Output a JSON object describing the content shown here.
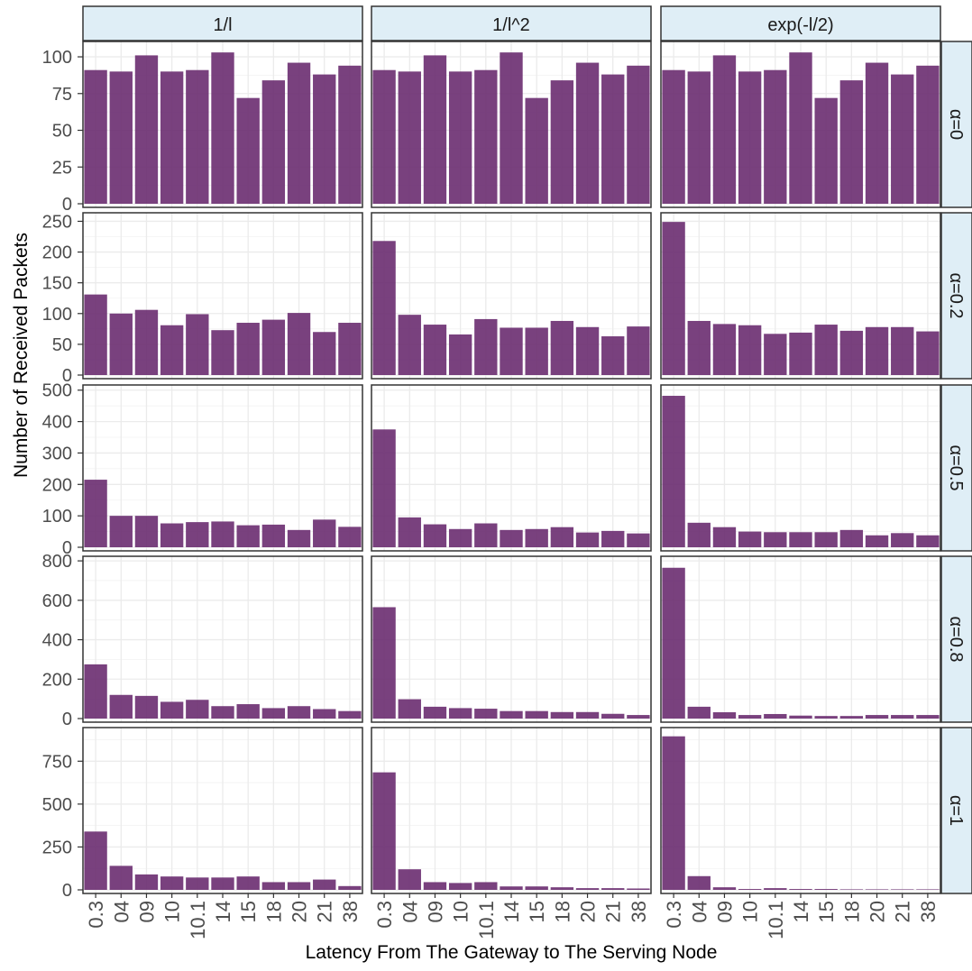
{
  "chart_data": {
    "type": "bar",
    "xlabel": "Latency From The Gateway to The Serving Node",
    "ylabel": "Number of Received Packets",
    "categories": [
      "0.3",
      "04",
      "09",
      "10",
      "10.1",
      "14",
      "15",
      "18",
      "20",
      "21",
      "38"
    ],
    "columns": [
      "1/l",
      "1/l^2",
      "exp(-l/2)"
    ],
    "rows": [
      {
        "label": "α=0",
        "ylim": [
          0,
          108
        ],
        "yticks": [
          0,
          25,
          50,
          75,
          100
        ],
        "panels": [
          {
            "facet": "1/l",
            "values": [
              91,
              90,
              101,
              90,
              91,
              103,
              72,
              84,
              96,
              88,
              94
            ]
          },
          {
            "facet": "1/l^2",
            "values": [
              91,
              90,
              101,
              90,
              91,
              103,
              72,
              84,
              96,
              88,
              94
            ]
          },
          {
            "facet": "exp(-l/2)",
            "values": [
              91,
              90,
              101,
              90,
              91,
              103,
              72,
              84,
              96,
              88,
              94
            ]
          }
        ]
      },
      {
        "label": "α=0.2",
        "ylim": [
          0,
          258
        ],
        "yticks": [
          0,
          50,
          100,
          150,
          200,
          250
        ],
        "panels": [
          {
            "facet": "1/l",
            "values": [
              131,
              100,
              106,
              81,
              99,
              73,
              85,
              90,
              101,
              70,
              85
            ]
          },
          {
            "facet": "1/l^2",
            "values": [
              218,
              98,
              82,
              66,
              91,
              77,
              77,
              88,
              78,
              63,
              79
            ]
          },
          {
            "facet": "exp(-l/2)",
            "values": [
              249,
              88,
              83,
              81,
              67,
              69,
              82,
              72,
              78,
              78,
              71
            ]
          }
        ]
      },
      {
        "label": "α=0.5",
        "ylim": [
          0,
          505
        ],
        "yticks": [
          0,
          100,
          200,
          300,
          400,
          500
        ],
        "panels": [
          {
            "facet": "1/l",
            "values": [
              215,
              100,
              100,
              76,
              80,
              82,
              70,
              72,
              55,
              88,
              65
            ]
          },
          {
            "facet": "1/l^2",
            "values": [
              375,
              95,
              73,
              58,
              76,
              55,
              58,
              64,
              47,
              52,
              44
            ]
          },
          {
            "facet": "exp(-l/2)",
            "values": [
              482,
              78,
              64,
              50,
              48,
              48,
              48,
              55,
              38,
              45,
              38
            ]
          }
        ]
      },
      {
        "label": "α=0.8",
        "ylim": [
          0,
          805
        ],
        "yticks": [
          0,
          200,
          400,
          600,
          800
        ],
        "panels": [
          {
            "facet": "1/l",
            "values": [
              275,
              120,
              115,
              85,
              95,
              63,
              73,
              53,
              63,
              48,
              38
            ]
          },
          {
            "facet": "1/l^2",
            "values": [
              565,
              98,
              60,
              53,
              50,
              38,
              38,
              33,
              33,
              24,
              18
            ]
          },
          {
            "facet": "exp(-l/2)",
            "values": [
              765,
              60,
              32,
              18,
              23,
              15,
              13,
              13,
              18,
              18,
              18
            ]
          }
        ]
      },
      {
        "label": "α=1",
        "ylim": [
          0,
          925
        ],
        "yticks": [
          0,
          250,
          500,
          750
        ],
        "panels": [
          {
            "facet": "1/l",
            "values": [
              340,
              140,
              90,
              78,
              72,
              72,
              78,
              45,
              45,
              60,
              22
            ]
          },
          {
            "facet": "1/l^2",
            "values": [
              685,
              120,
              45,
              40,
              45,
              20,
              20,
              15,
              10,
              10,
              8
            ]
          },
          {
            "facet": "exp(-l/2)",
            "values": [
              895,
              80,
              15,
              5,
              10,
              5,
              5,
              3,
              3,
              3,
              3
            ]
          }
        ]
      }
    ],
    "bar_color": "#6a2c70",
    "strip_color": "#dfeef6",
    "grid": true
  }
}
